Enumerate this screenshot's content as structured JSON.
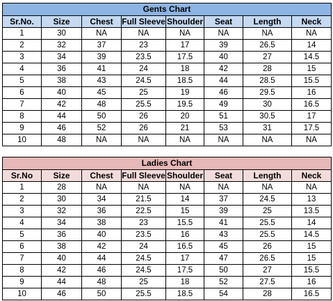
{
  "colors": {
    "gents_title_bg": "#8db4e2",
    "gents_header_bg": "#c5d9f1",
    "ladies_title_bg": "#e6b8b7",
    "ladies_header_bg": "#f2dcdb"
  },
  "gents": {
    "title": "Gents Chart",
    "headers": [
      "Sr.No.",
      "Size",
      "Chest",
      "Full Sleeve",
      "Shoulder",
      "Seat",
      "Length",
      "Neck"
    ],
    "rows": [
      [
        "1",
        "30",
        "NA",
        "NA",
        "NA",
        "NA",
        "NA",
        "NA"
      ],
      [
        "2",
        "32",
        "37",
        "23",
        "17",
        "39",
        "26.5",
        "14"
      ],
      [
        "3",
        "34",
        "39",
        "23.5",
        "17.5",
        "40",
        "27",
        "14.5"
      ],
      [
        "4",
        "36",
        "41",
        "24",
        "18",
        "42",
        "28",
        "15"
      ],
      [
        "5",
        "38",
        "43",
        "24.5",
        "18.5",
        "44",
        "28.5",
        "15.5"
      ],
      [
        "6",
        "40",
        "45",
        "25",
        "19",
        "46",
        "29.5",
        "16"
      ],
      [
        "7",
        "42",
        "48",
        "25.5",
        "19.5",
        "49",
        "30",
        "16.5"
      ],
      [
        "8",
        "44",
        "50",
        "26",
        "20",
        "51",
        "30.5",
        "17"
      ],
      [
        "9",
        "46",
        "52",
        "26",
        "21",
        "53",
        "31",
        "17.5"
      ],
      [
        "10",
        "48",
        "NA",
        "NA",
        "NA",
        "NA",
        "NA",
        "NA"
      ]
    ]
  },
  "ladies": {
    "title": "Ladies Chart",
    "headers": [
      "Sr.No",
      "Size",
      "Chest",
      "Full Sleeve",
      "Shoulder",
      "Seat",
      "Length",
      "Neck"
    ],
    "rows": [
      [
        "1",
        "28",
        "NA",
        "NA",
        "NA",
        "NA",
        "NA",
        "NA"
      ],
      [
        "2",
        "30",
        "34",
        "21.5",
        "14",
        "37",
        "24.5",
        "13"
      ],
      [
        "3",
        "32",
        "36",
        "22.5",
        "15",
        "39",
        "25",
        "13.5"
      ],
      [
        "4",
        "34",
        "38",
        "23",
        "15.5",
        "41",
        "25.5",
        "14"
      ],
      [
        "5",
        "36",
        "40",
        "23.5",
        "16",
        "43",
        "25.5",
        "14.5"
      ],
      [
        "6",
        "38",
        "42",
        "24",
        "16.5",
        "45",
        "26",
        "15"
      ],
      [
        "7",
        "40",
        "44",
        "24.5",
        "17",
        "47",
        "26.5",
        "15"
      ],
      [
        "8",
        "42",
        "46",
        "24.5",
        "17.5",
        "50",
        "27",
        "15.5"
      ],
      [
        "9",
        "44",
        "48",
        "25",
        "18",
        "52",
        "27.5",
        "16"
      ],
      [
        "10",
        "46",
        "50",
        "25.5",
        "18.5",
        "54",
        "28",
        "16.5"
      ]
    ]
  }
}
